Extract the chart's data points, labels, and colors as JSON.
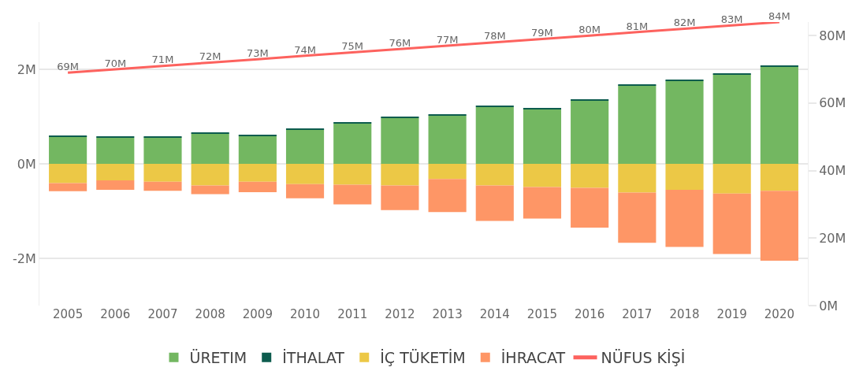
{
  "chart_data": {
    "type": "bar",
    "stacked": true,
    "categories": [
      "2005",
      "2006",
      "2007",
      "2008",
      "2009",
      "2010",
      "2011",
      "2012",
      "2013",
      "2014",
      "2015",
      "2016",
      "2017",
      "2018",
      "2019",
      "2020"
    ],
    "series": [
      {
        "name": "ÜRETIM",
        "color": "#73b761",
        "values": [
          0.58,
          0.55,
          0.56,
          0.64,
          0.59,
          0.73,
          0.85,
          0.97,
          1.02,
          1.2,
          1.16,
          1.34,
          1.66,
          1.76,
          1.89,
          2.05
        ]
      },
      {
        "name": "İTHALAT",
        "color": "#0d5c4e",
        "values": [
          0.02,
          0.02,
          0.02,
          0.02,
          0.02,
          0.02,
          0.02,
          0.02,
          0.02,
          0.02,
          0.02,
          0.02,
          0.02,
          0.02,
          0.02,
          0.02
        ]
      },
      {
        "name": "İÇ TÜKETİM",
        "color": "#ecc846",
        "values": [
          -0.41,
          -0.35,
          -0.38,
          -0.46,
          -0.38,
          -0.43,
          -0.44,
          -0.46,
          -0.32,
          -0.46,
          -0.49,
          -0.51,
          -0.61,
          -0.55,
          -0.63,
          -0.57
        ]
      },
      {
        "name": "İHRACAT",
        "color": "#fe9666",
        "values": [
          -0.17,
          -0.2,
          -0.19,
          -0.18,
          -0.22,
          -0.3,
          -0.42,
          -0.52,
          -0.7,
          -0.75,
          -0.67,
          -0.84,
          -1.06,
          -1.21,
          -1.28,
          -1.48
        ]
      },
      {
        "name": "NÜFUS KİŞİ",
        "color": "#fd625e",
        "type": "line",
        "axis": "y2",
        "marker": "none",
        "values": [
          69,
          70,
          71,
          72,
          73,
          74,
          75,
          76,
          77,
          78,
          79,
          80,
          81,
          82,
          83,
          84
        ],
        "value_labels": [
          "69M",
          "70M",
          "71M",
          "72M",
          "73M",
          "74M",
          "75M",
          "76M",
          "77M",
          "78M",
          "79M",
          "80M",
          "81M",
          "82M",
          "83M",
          "84M"
        ]
      }
    ],
    "ylim": [
      -3,
      3
    ],
    "yticks": [
      {
        "value": -2,
        "label": "-2M"
      },
      {
        "value": 0,
        "label": "0M"
      },
      {
        "value": 2,
        "label": "2M"
      }
    ],
    "y2lim": [
      0,
      84
    ],
    "y2ticks": [
      {
        "value": 0,
        "label": "0M"
      },
      {
        "value": 20,
        "label": "20M"
      },
      {
        "value": 40,
        "label": "40M"
      },
      {
        "value": 60,
        "label": "60M"
      },
      {
        "value": 80,
        "label": "80M"
      }
    ],
    "grid": "y",
    "legend": "bottom"
  }
}
